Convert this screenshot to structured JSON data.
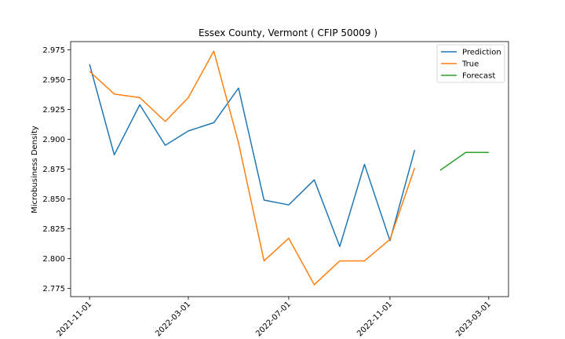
{
  "chart_data": {
    "type": "line",
    "title": "Essex County, Vermont ( CFIP 50009 )",
    "xlabel": "",
    "ylabel": "Microbusiness Density",
    "x_ticks": [
      "2021-11-01",
      "2022-03-01",
      "2022-07-01",
      "2022-11-01",
      "2023-03-01"
    ],
    "y_ticks": [
      "2.775",
      "2.800",
      "2.825",
      "2.850",
      "2.875",
      "2.900",
      "2.925",
      "2.950",
      "2.975"
    ],
    "ylim": [
      2.768,
      2.982
    ],
    "xlim": [
      "2021-10-09",
      "2023-03-25"
    ],
    "grid": false,
    "legend_position": "top-right",
    "series": [
      {
        "name": "Prediction",
        "color": "#1f77b4",
        "x": [
          "2021-11-01",
          "2021-12-01",
          "2022-01-01",
          "2022-02-01",
          "2022-03-01",
          "2022-04-01",
          "2022-05-01",
          "2022-06-01",
          "2022-07-01",
          "2022-08-01",
          "2022-09-01",
          "2022-10-01",
          "2022-11-01",
          "2022-12-01"
        ],
        "values": [
          2.963,
          2.887,
          2.929,
          2.895,
          2.907,
          2.914,
          2.943,
          2.849,
          2.845,
          2.866,
          2.81,
          2.879,
          2.815,
          2.891
        ]
      },
      {
        "name": "True",
        "color": "#ff7f0e",
        "x": [
          "2021-11-01",
          "2021-12-01",
          "2022-01-01",
          "2022-02-01",
          "2022-03-01",
          "2022-04-01",
          "2022-05-01",
          "2022-06-01",
          "2022-07-01",
          "2022-08-01",
          "2022-09-01",
          "2022-10-01",
          "2022-11-01",
          "2022-12-01"
        ],
        "values": [
          2.957,
          2.938,
          2.935,
          2.915,
          2.935,
          2.974,
          2.897,
          2.798,
          2.817,
          2.778,
          2.798,
          2.798,
          2.816,
          2.876
        ]
      },
      {
        "name": "Forecast",
        "color": "#2ca02c",
        "x": [
          "2023-01-01",
          "2023-02-01",
          "2023-03-01"
        ],
        "values": [
          2.874,
          2.889,
          2.889
        ]
      }
    ]
  }
}
